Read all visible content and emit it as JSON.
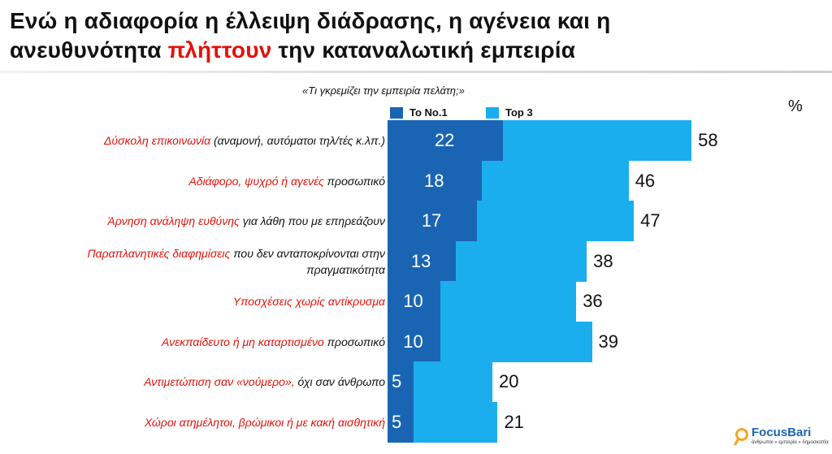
{
  "title": {
    "line1": "Ενώ η αδιαφορία η έλλειψη διάδρασης, η αγένεια και η",
    "line2_before": "ανευθυνότητα ",
    "line2_highlight": "πλήττουν",
    "line2_after": " την καταναλωτική εμπειρία"
  },
  "question": "«Τι γκρεμίζει την εμπειρία πελάτη;»",
  "unit": "%",
  "colors": {
    "no1": "#1a65b3",
    "top3": "#1aaeef",
    "highlight": "#e3120b"
  },
  "logo": {
    "name": "FocusBari",
    "tagline": "άνθρωποι » εμπειρία » δημοσκοπία",
    "icon": "magnifier-icon"
  },
  "chart_data": {
    "type": "bar",
    "orientation": "horizontal",
    "stacking": "overlay",
    "legend": [
      "Το No.1",
      "Top 3"
    ],
    "legend_position": "top",
    "xlim": [
      0,
      100
    ],
    "grid": false,
    "categories": [
      {
        "red": "Δύσκολη επικοινωνία",
        "rest": " (αναμονή, αυτόματοι τηλ/τές κ.λπ.)"
      },
      {
        "red": "Αδιάφορο, ψυχρό ή αγενές",
        "rest": " προσωπικό"
      },
      {
        "red": "Άρνηση ανάληψη ευθύνης",
        "rest": " για λάθη που με επηρεάζουν"
      },
      {
        "red": "Παραπλανητικές διαφημίσεις",
        "rest": " που δεν ανταποκρίνονται στην πραγματικότητα"
      },
      {
        "red": "Υποσχέσεις χωρίς αντίκρυσμα",
        "rest": ""
      },
      {
        "red": "Ανεκπαίδευτο ή μη καταρτισμένο",
        "rest": " προσωπικό"
      },
      {
        "red": "Αντιμετώπιση σαν «νούμερο»,",
        "rest": " όχι σαν άνθρωπο"
      },
      {
        "red": "Χώροι ατημέλητοι, βρώμικοι ή με κακή αισθητική",
        "rest": ""
      }
    ],
    "series": [
      {
        "name": "Το No.1",
        "values": [
          22,
          18,
          17,
          13,
          10,
          10,
          5,
          5
        ]
      },
      {
        "name": "Top 3",
        "values": [
          58,
          46,
          47,
          38,
          36,
          39,
          20,
          21
        ]
      }
    ]
  }
}
